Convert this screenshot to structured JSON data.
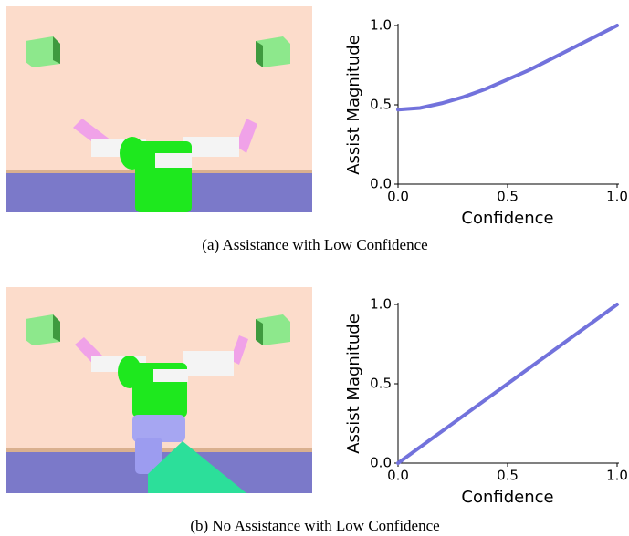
{
  "chart_data": [
    {
      "type": "line",
      "caption": "(a) Assistance with Low Confidence",
      "xlabel": "Confidence",
      "ylabel": "Assist Magnitude",
      "x": [
        0,
        0.1,
        0.2,
        0.3,
        0.4,
        0.5,
        0.6,
        0.7,
        0.8,
        0.9,
        1
      ],
      "values": [
        0.47,
        0.48,
        0.51,
        0.55,
        0.6,
        0.66,
        0.72,
        0.79,
        0.86,
        0.93,
        1
      ],
      "color": "#7272dc",
      "xlim": [
        0,
        1
      ],
      "ylim": [
        0,
        1
      ],
      "xticks": [
        {
          "value": 0,
          "label": "0.0"
        },
        0.5,
        {
          "value": 1,
          "label": "1.0"
        }
      ],
      "yticks": [
        {
          "value": 0,
          "label": "0.0"
        },
        0.5,
        {
          "value": 1,
          "label": "1.0"
        }
      ]
    },
    {
      "type": "line",
      "caption": "(b) No Assistance with Low Confidence",
      "xlabel": "Confidence",
      "ylabel": "Assist Magnitude",
      "x": [
        0,
        1
      ],
      "values": [
        0,
        1
      ],
      "color": "#7272dc",
      "xlim": [
        0,
        1
      ],
      "ylim": [
        0,
        1
      ],
      "xticks": [
        {
          "value": 0,
          "label": "0.0"
        },
        0.5,
        {
          "value": 1,
          "label": "1.0"
        }
      ],
      "yticks": [
        {
          "value": 0,
          "label": "0.0"
        },
        0.5,
        {
          "value": 1,
          "label": "1.0"
        }
      ]
    }
  ]
}
